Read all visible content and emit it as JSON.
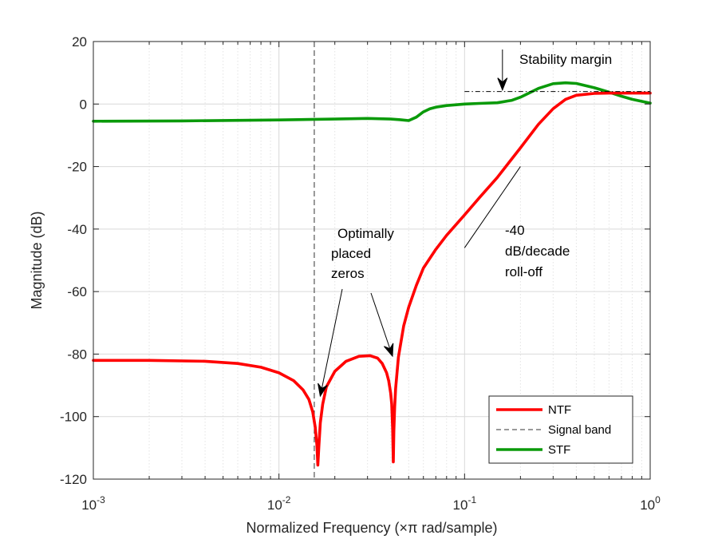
{
  "chart_data": {
    "type": "line",
    "xscale": "log",
    "xlabel": "Normalized Frequency (×π rad/sample)",
    "ylabel": "Magnitude (dB)",
    "xlim": [
      0.001,
      1
    ],
    "ylim": [
      -120,
      20
    ],
    "yticks": [
      -120,
      -100,
      -80,
      -60,
      -40,
      -20,
      0,
      20
    ],
    "ytick_labels": [
      "-120",
      "-100",
      "-80",
      "-60",
      "-40",
      "-20",
      "0",
      "20"
    ],
    "xticks": [
      {
        "value": 0.001,
        "base": "10",
        "exp": "-3"
      },
      {
        "value": 0.01,
        "base": "10",
        "exp": "-2"
      },
      {
        "value": 0.1,
        "base": "10",
        "exp": "-1"
      },
      {
        "value": 1,
        "base": "10",
        "exp": "0"
      }
    ],
    "grid": true,
    "minor_grid": true,
    "legend_position": "bottom-right",
    "colors": {
      "ntf": "#ff0000",
      "stf": "#0a9a0a",
      "band": "#333333",
      "grid": "#d9d9d9"
    },
    "series": [
      {
        "name": "NTF",
        "x": [
          0.001,
          0.002,
          0.004,
          0.006,
          0.008,
          0.01,
          0.012,
          0.0135,
          0.0145,
          0.0152,
          0.0157,
          0.016,
          0.0162,
          0.0164,
          0.0167,
          0.0172,
          0.018,
          0.02,
          0.023,
          0.027,
          0.031,
          0.034,
          0.036,
          0.038,
          0.039,
          0.04,
          0.0405,
          0.041,
          0.0413,
          0.0416,
          0.042,
          0.0425,
          0.044,
          0.047,
          0.05,
          0.055,
          0.06,
          0.07,
          0.08,
          0.1,
          0.12,
          0.15,
          0.2,
          0.25,
          0.3,
          0.35,
          0.4,
          0.5,
          0.6,
          0.8,
          1.0
        ],
        "y": [
          -82,
          -82,
          -82.3,
          -83,
          -84.2,
          -86,
          -88.5,
          -91.5,
          -94.5,
          -98.5,
          -103.5,
          -109,
          -115.5,
          -109.5,
          -102,
          -96,
          -90.5,
          -85.5,
          -82.3,
          -80.7,
          -80.5,
          -81.3,
          -83,
          -86,
          -88.5,
          -92.5,
          -96,
          -104,
          -114.5,
          -104.5,
          -97,
          -91,
          -81,
          -71,
          -65,
          -58,
          -52.5,
          -46.5,
          -42,
          -35.5,
          -30,
          -23.5,
          -14,
          -6.5,
          -1.5,
          1.5,
          2.8,
          3.4,
          3.5,
          3.5,
          3.5
        ]
      },
      {
        "name": "STF",
        "x": [
          0.001,
          0.003,
          0.01,
          0.02,
          0.03,
          0.04,
          0.045,
          0.05,
          0.055,
          0.06,
          0.065,
          0.07,
          0.08,
          0.1,
          0.12,
          0.15,
          0.18,
          0.2,
          0.25,
          0.3,
          0.35,
          0.4,
          0.5,
          0.6,
          0.7,
          0.8,
          1.0
        ],
        "y": [
          -5.5,
          -5.4,
          -5.1,
          -4.8,
          -4.6,
          -4.8,
          -5.0,
          -5.3,
          -4.2,
          -2.5,
          -1.5,
          -1.0,
          -0.5,
          0,
          0.2,
          0.4,
          1.2,
          2.2,
          5.0,
          6.5,
          6.8,
          6.6,
          5.2,
          3.8,
          2.5,
          1.5,
          0.3
        ]
      }
    ],
    "signal_band": {
      "label": "Signal band",
      "x": 0.0155
    },
    "annotations": {
      "stability": {
        "text": "Stability margin",
        "level_db": 4,
        "x_start": 0.1,
        "x_end": 1.0,
        "arrow_x": 0.16
      },
      "zeros": {
        "lines": [
          "Optimally",
          "placed",
          "zeros"
        ],
        "zero1_x": 0.0162,
        "zero2_x": 0.0413
      },
      "rolloff": {
        "lines": [
          "-40",
          "dB/decade",
          "roll-off"
        ],
        "from": [
          0.2,
          -20
        ],
        "to": [
          0.1,
          -46
        ]
      }
    },
    "legend": [
      "NTF",
      "Signal band",
      "STF"
    ]
  }
}
